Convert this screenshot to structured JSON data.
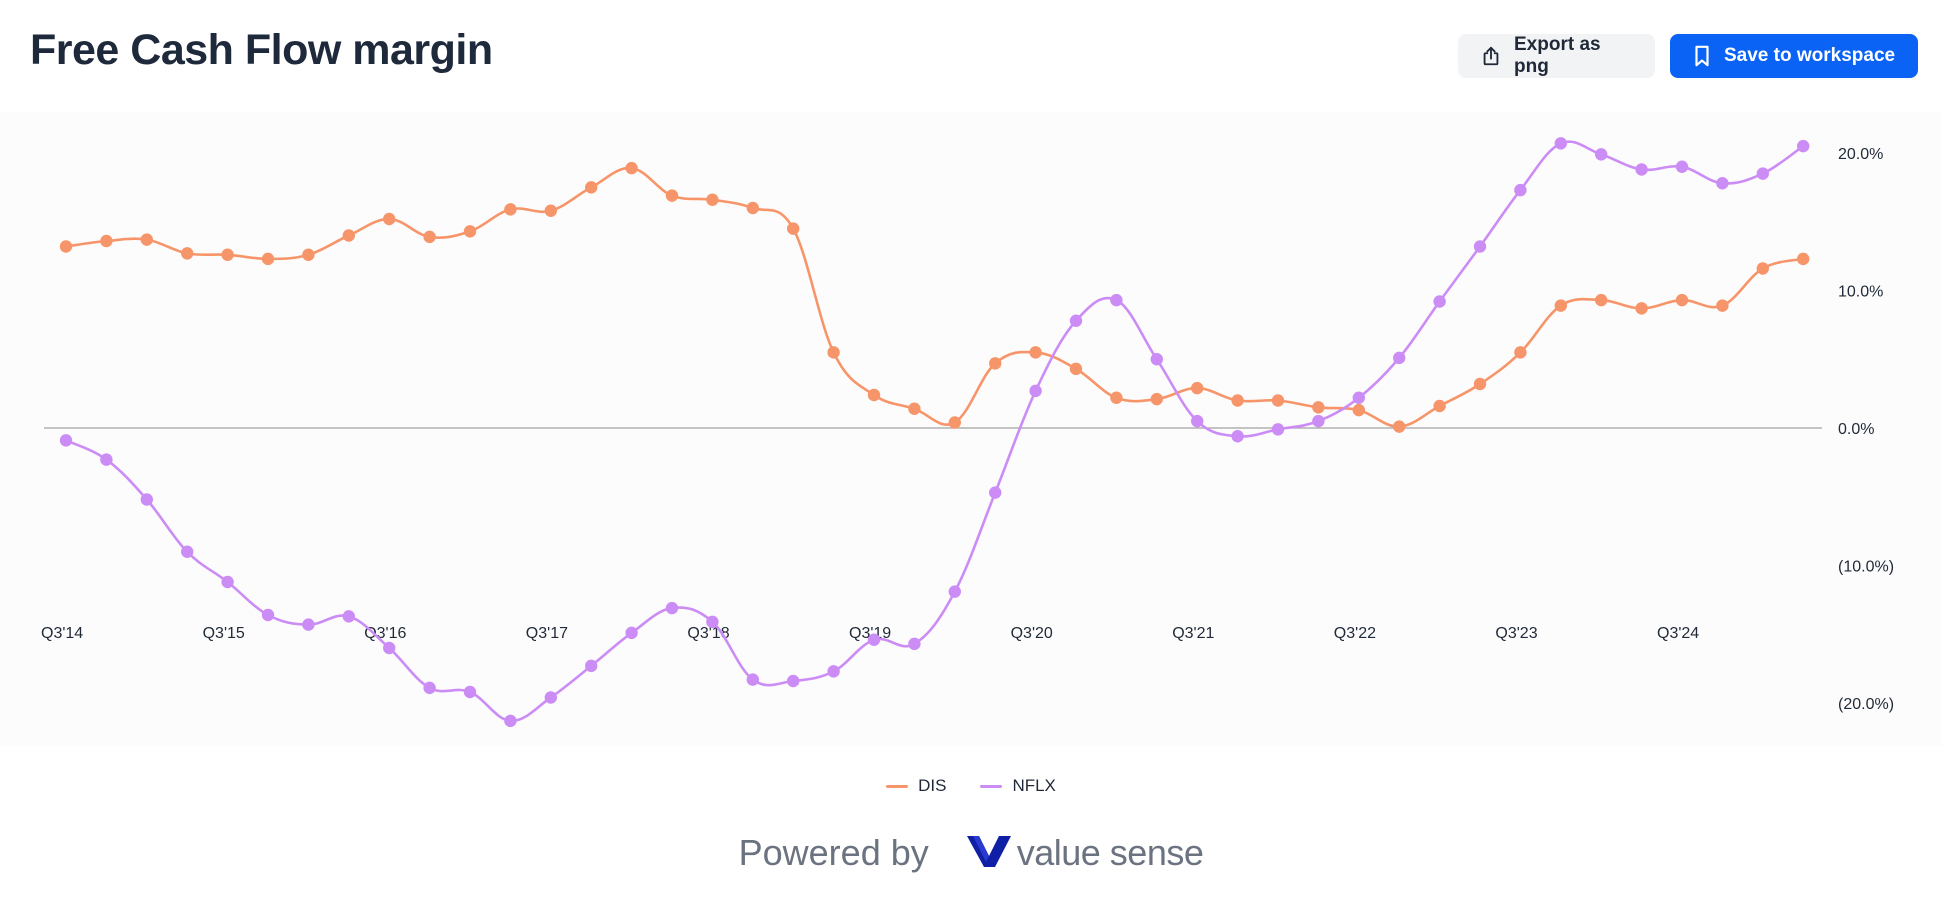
{
  "header": {
    "title": "Free Cash Flow margin",
    "export_label": "Export as png",
    "save_label": "Save to workspace"
  },
  "footer": {
    "powered_by": "Powered by",
    "brand": "value sense"
  },
  "icons": {
    "export": "share-upload-icon",
    "save": "bookmark-icon",
    "brand": "valuesense-logo-icon"
  },
  "colors": {
    "DIS": "#f7956a",
    "NFLX": "#cc8cf6",
    "save_button": "#0b63f6",
    "brand_mark": "#0f1fa6"
  },
  "chart_data": {
    "type": "line",
    "title": "Free Cash Flow margin",
    "xlabel": "",
    "ylabel": "",
    "x": [
      "Q3'14",
      "Q4'14",
      "Q1'15",
      "Q2'15",
      "Q3'15",
      "Q4'15",
      "Q1'16",
      "Q2'16",
      "Q3'16",
      "Q4'16",
      "Q1'17",
      "Q2'17",
      "Q3'17",
      "Q4'17",
      "Q1'18",
      "Q2'18",
      "Q3'18",
      "Q4'18",
      "Q1'19",
      "Q2'19",
      "Q3'19",
      "Q4'19",
      "Q1'20",
      "Q2'20",
      "Q3'20",
      "Q4'20",
      "Q1'21",
      "Q2'21",
      "Q3'21",
      "Q4'21",
      "Q1'22",
      "Q2'22",
      "Q3'22",
      "Q4'22",
      "Q1'23",
      "Q2'23",
      "Q3'23",
      "Q4'23",
      "Q1'24",
      "Q2'24",
      "Q3'24",
      "Q4'24",
      "Q1'25",
      "Q2'25"
    ],
    "x_tick_labels": [
      "Q3'14",
      "Q3'15",
      "Q3'16",
      "Q3'17",
      "Q3'18",
      "Q3'19",
      "Q3'20",
      "Q3'21",
      "Q3'22",
      "Q3'23",
      "Q3'24"
    ],
    "y_tick_labels": [
      "20.0%",
      "10.0%",
      "0.0%",
      "(10.0%)",
      "(20.0%)"
    ],
    "ylim": [
      -21.5,
      21.5
    ],
    "y_unit": "%",
    "grid": false,
    "zero_line": true,
    "legend_position": "bottom-center",
    "series": [
      {
        "name": "DIS",
        "values": [
          13.2,
          13.6,
          13.7,
          12.7,
          12.6,
          12.3,
          12.6,
          14.0,
          15.2,
          13.9,
          14.3,
          15.9,
          15.8,
          17.5,
          18.9,
          16.9,
          16.6,
          16.0,
          14.5,
          5.5,
          2.4,
          1.4,
          0.4,
          4.7,
          5.5,
          4.3,
          2.2,
          2.1,
          2.9,
          2.0,
          2.0,
          1.5,
          1.3,
          0.1,
          1.6,
          3.2,
          5.5,
          8.9,
          9.3,
          8.7,
          9.3,
          8.9,
          11.6,
          12.3
        ]
      },
      {
        "name": "NFLX",
        "values": [
          -0.9,
          -2.3,
          -5.2,
          -9.0,
          -11.2,
          -13.6,
          -14.3,
          -13.7,
          -16.0,
          -18.9,
          -19.2,
          -21.3,
          -19.6,
          -17.3,
          -14.9,
          -13.1,
          -14.1,
          -18.3,
          -18.4,
          -17.7,
          -15.4,
          -15.7,
          -11.9,
          -4.7,
          2.7,
          7.8,
          9.3,
          5.0,
          0.5,
          -0.6,
          -0.1,
          0.5,
          2.2,
          5.1,
          9.2,
          13.2,
          17.3,
          20.7,
          19.9,
          18.8,
          19.0,
          17.8,
          18.5,
          20.5
        ]
      }
    ]
  }
}
